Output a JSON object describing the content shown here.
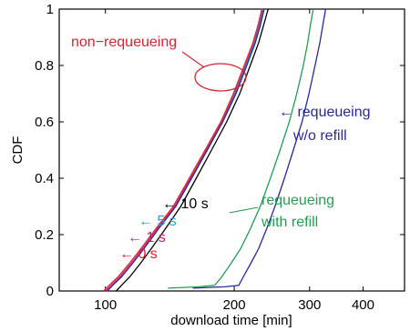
{
  "chart_data": {
    "type": "line",
    "xlabel": "download time [min]",
    "ylabel": "CDF",
    "xscale": "log",
    "xlim": [
      78,
      500
    ],
    "ylim": [
      0,
      1
    ],
    "x_ticks": [
      100,
      200,
      300,
      400
    ],
    "x_tick_labels": [
      "100",
      "200",
      "300",
      "400"
    ],
    "y_ticks": [
      0,
      0.2,
      0.4,
      0.6,
      0.8,
      1
    ],
    "y_tick_labels": [
      "0",
      "0.2",
      "0.4",
      "0.6",
      "0.8",
      "1"
    ],
    "grid": false,
    "series": [
      {
        "color": "#e0207a",
        "points": [
          [
            100,
            0
          ],
          [
            103,
            0.02
          ],
          [
            108,
            0.05
          ],
          [
            115,
            0.1
          ],
          [
            122,
            0.15
          ],
          [
            132,
            0.22
          ],
          [
            145,
            0.3
          ],
          [
            158,
            0.4
          ],
          [
            172,
            0.5
          ],
          [
            187,
            0.6
          ],
          [
            200,
            0.7
          ],
          [
            212,
            0.8
          ],
          [
            222,
            0.88
          ],
          [
            228,
            0.94
          ],
          [
            233,
            1
          ]
        ]
      },
      {
        "color": "#e03030",
        "points": [
          [
            99,
            0
          ],
          [
            102,
            0.02
          ],
          [
            107,
            0.05
          ],
          [
            114,
            0.1
          ],
          [
            121,
            0.15
          ],
          [
            131,
            0.22
          ],
          [
            144,
            0.3
          ],
          [
            157,
            0.4
          ],
          [
            171,
            0.5
          ],
          [
            186,
            0.6
          ],
          [
            199,
            0.7
          ],
          [
            211,
            0.8
          ],
          [
            221,
            0.88
          ],
          [
            227,
            0.94
          ],
          [
            232,
            1
          ]
        ]
      },
      {
        "color": "#2a88c8",
        "points": [
          [
            101,
            0
          ],
          [
            104,
            0.02
          ],
          [
            109,
            0.05
          ],
          [
            116,
            0.1
          ],
          [
            123,
            0.15
          ],
          [
            133,
            0.22
          ],
          [
            146,
            0.3
          ],
          [
            159,
            0.4
          ],
          [
            173,
            0.5
          ],
          [
            188,
            0.6
          ],
          [
            201,
            0.7
          ],
          [
            213,
            0.8
          ],
          [
            223,
            0.88
          ],
          [
            229,
            0.94
          ],
          [
            234,
            1
          ]
        ]
      },
      {
        "color": "#303090",
        "points": [
          [
            101,
            0
          ],
          [
            104,
            0.02
          ],
          [
            109,
            0.05
          ],
          [
            116,
            0.1
          ],
          [
            123,
            0.15
          ],
          [
            133,
            0.22
          ],
          [
            146,
            0.3
          ],
          [
            159,
            0.4
          ],
          [
            173,
            0.5
          ],
          [
            188,
            0.6
          ],
          [
            202,
            0.7
          ],
          [
            214,
            0.8
          ],
          [
            224,
            0.88
          ],
          [
            230,
            0.94
          ],
          [
            235,
            1
          ]
        ]
      },
      {
        "color": "#000000",
        "points": [
          [
            106,
            0
          ],
          [
            109,
            0.02
          ],
          [
            114,
            0.05
          ],
          [
            121,
            0.1
          ],
          [
            128,
            0.15
          ],
          [
            138,
            0.22
          ],
          [
            150,
            0.3
          ],
          [
            163,
            0.4
          ],
          [
            177,
            0.5
          ],
          [
            192,
            0.6
          ],
          [
            206,
            0.7
          ],
          [
            218,
            0.8
          ],
          [
            228,
            0.88
          ],
          [
            234,
            0.94
          ],
          [
            240,
            1
          ]
        ]
      },
      {
        "color": "#20a050",
        "points": [
          [
            140,
            0.01
          ],
          [
            165,
            0.015
          ],
          [
            180,
            0.02
          ],
          [
            187,
            0.05
          ],
          [
            197,
            0.1
          ],
          [
            207,
            0.15
          ],
          [
            218,
            0.22
          ],
          [
            230,
            0.3
          ],
          [
            243,
            0.4
          ],
          [
            256,
            0.5
          ],
          [
            269,
            0.6
          ],
          [
            280,
            0.7
          ],
          [
            290,
            0.8
          ],
          [
            297,
            0.88
          ],
          [
            301,
            0.94
          ],
          [
            306,
            1
          ]
        ]
      },
      {
        "color": "#2828a0",
        "points": [
          [
            160,
            0.01
          ],
          [
            190,
            0.015
          ],
          [
            205,
            0.02
          ],
          [
            210,
            0.05
          ],
          [
            219,
            0.1
          ],
          [
            228,
            0.15
          ],
          [
            238,
            0.22
          ],
          [
            249,
            0.3
          ],
          [
            262,
            0.4
          ],
          [
            275,
            0.5
          ],
          [
            288,
            0.6
          ],
          [
            299,
            0.7
          ],
          [
            309,
            0.8
          ],
          [
            317,
            0.88
          ],
          [
            322,
            0.94
          ],
          [
            327,
            1
          ]
        ]
      }
    ]
  },
  "annotations": {
    "non_requeueing": "non−requeueing",
    "requeueing_wo_refill_line1": "← requeueing",
    "requeueing_wo_refill_line2": "w/o refill",
    "requeueing_with_refill_line1": "requeueing",
    "requeueing_with_refill_line2": "with refill",
    "label_10s": "← 10 s",
    "label_5s": "← 5 s",
    "label_1s": "← 1 s",
    "label_0s": "← 0 s"
  },
  "colors": {
    "non_requeueing": "#e02030",
    "wo_refill": "#2828a0",
    "with_refill": "#20a050",
    "label_10s": "#000000",
    "label_5s": "#2aa0d8",
    "label_1s": "#c0206e",
    "label_0s": "#e02030"
  }
}
